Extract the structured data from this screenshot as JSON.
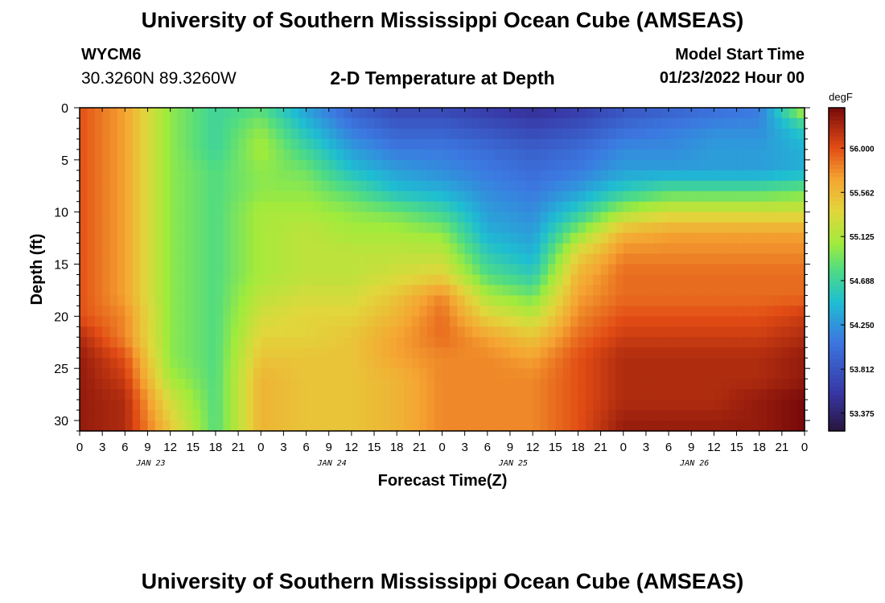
{
  "page": {
    "title": "University of Southern Mississippi Ocean Cube (AMSEAS)",
    "station": "WYCM6",
    "coordinates": "30.3260N  89.3260W",
    "subtitle": "2-D Temperature at Depth",
    "model_start_label": "Model Start Time",
    "model_start_value": "01/23/2022 Hour 00",
    "footer_title": "University of Southern Mississippi Ocean Cube (AMSEAS)"
  },
  "chart_data": {
    "type": "heatmap",
    "title": "2-D Temperature at Depth",
    "xlabel": "Forecast Time(Z)",
    "ylabel": "Depth (ft)",
    "x_hours_range": [
      0,
      96
    ],
    "x_tick_step_hours": 3,
    "x_tick_labels": [
      "0",
      "3",
      "6",
      "9",
      "12",
      "15",
      "18",
      "21",
      "0",
      "3",
      "6",
      "9",
      "12",
      "15",
      "18",
      "21",
      "0",
      "3",
      "6",
      "9",
      "12",
      "15",
      "18",
      "21",
      "0",
      "3",
      "6",
      "9",
      "12",
      "15",
      "18",
      "21",
      "0"
    ],
    "day_labels": [
      {
        "label": "JAN 23",
        "hour": 9
      },
      {
        "label": "JAN 24",
        "hour": 33
      },
      {
        "label": "JAN 25",
        "hour": 57
      },
      {
        "label": "JAN 26",
        "hour": 81
      }
    ],
    "y_range": [
      0,
      31
    ],
    "y_inverted": true,
    "y_tick_labels": [
      "0",
      "5",
      "10",
      "15",
      "20",
      "25",
      "30"
    ],
    "y_tick_values": [
      0,
      5,
      10,
      15,
      20,
      25,
      30
    ],
    "colorbar": {
      "unit": "degF",
      "min": 53.2,
      "max": 56.4,
      "tick_labels": [
        "56.000",
        "55.562",
        "55.125",
        "54.688",
        "54.250",
        "53.812",
        "53.375"
      ],
      "tick_values": [
        56.0,
        55.562,
        55.125,
        54.688,
        54.25,
        53.812,
        53.375
      ]
    },
    "grid": {
      "hours": [
        0,
        6,
        12,
        18,
        24,
        30,
        36,
        42,
        48,
        54,
        60,
        66,
        72,
        78,
        84,
        90,
        96
      ],
      "depths": [
        0,
        2,
        4,
        6,
        8,
        10,
        12,
        14,
        16,
        18,
        20,
        22,
        24,
        26,
        28,
        31
      ],
      "values": [
        [
          56.0,
          55.7,
          55.0,
          54.7,
          54.8,
          54.3,
          53.9,
          53.7,
          53.7,
          53.6,
          53.5,
          53.6,
          53.8,
          53.9,
          54.0,
          54.1,
          55.2
        ],
        [
          56.0,
          55.7,
          55.0,
          54.7,
          55.0,
          54.5,
          54.1,
          53.9,
          53.9,
          53.8,
          53.7,
          53.8,
          54.0,
          54.1,
          54.2,
          54.2,
          54.6
        ],
        [
          56.0,
          55.7,
          55.0,
          54.7,
          55.1,
          54.7,
          54.3,
          54.1,
          54.1,
          54.0,
          53.9,
          54.0,
          54.2,
          54.2,
          54.3,
          54.3,
          54.4
        ],
        [
          56.0,
          55.7,
          55.0,
          54.8,
          55.0,
          54.9,
          54.5,
          54.3,
          54.2,
          54.1,
          54.0,
          54.1,
          54.3,
          54.3,
          54.3,
          54.3,
          54.4
        ],
        [
          56.0,
          55.7,
          55.0,
          54.8,
          55.0,
          55.0,
          54.8,
          54.5,
          54.4,
          54.2,
          54.1,
          54.3,
          54.6,
          54.8,
          54.8,
          54.8,
          54.9
        ],
        [
          56.0,
          55.7,
          55.0,
          54.8,
          55.1,
          55.1,
          55.0,
          54.9,
          54.7,
          54.3,
          54.2,
          54.6,
          55.1,
          55.3,
          55.3,
          55.3,
          55.3
        ],
        [
          56.0,
          55.7,
          55.0,
          54.8,
          55.1,
          55.2,
          55.1,
          55.1,
          55.0,
          54.4,
          54.3,
          55.0,
          55.6,
          55.7,
          55.7,
          55.7,
          55.7
        ],
        [
          56.0,
          55.7,
          55.0,
          54.8,
          55.1,
          55.2,
          55.2,
          55.2,
          55.2,
          54.6,
          54.4,
          55.4,
          55.8,
          55.8,
          55.8,
          55.8,
          55.8
        ],
        [
          56.0,
          55.7,
          55.0,
          54.8,
          55.1,
          55.2,
          55.2,
          55.3,
          55.4,
          54.8,
          54.6,
          55.6,
          55.9,
          55.9,
          55.9,
          55.9,
          55.9
        ],
        [
          56.0,
          55.7,
          55.0,
          54.8,
          55.2,
          55.3,
          55.3,
          55.5,
          55.8,
          55.1,
          54.9,
          55.7,
          55.9,
          55.9,
          55.9,
          55.9,
          55.9
        ],
        [
          56.0,
          55.8,
          55.0,
          54.8,
          55.3,
          55.4,
          55.4,
          55.6,
          55.9,
          55.4,
          55.2,
          55.8,
          56.0,
          56.0,
          56.0,
          56.0,
          56.1
        ],
        [
          56.2,
          55.8,
          55.0,
          54.8,
          55.4,
          55.4,
          55.5,
          55.7,
          55.9,
          55.7,
          55.5,
          55.9,
          56.1,
          56.1,
          56.1,
          56.1,
          56.2
        ],
        [
          56.3,
          56.0,
          55.0,
          54.8,
          55.5,
          55.5,
          55.5,
          55.7,
          55.8,
          55.8,
          55.7,
          56.0,
          56.2,
          56.2,
          56.2,
          56.2,
          56.3
        ],
        [
          56.3,
          56.1,
          55.1,
          54.8,
          55.6,
          55.5,
          55.5,
          55.6,
          55.8,
          55.8,
          55.8,
          56.0,
          56.2,
          56.2,
          56.2,
          56.2,
          56.3
        ],
        [
          56.3,
          56.2,
          55.3,
          54.8,
          55.6,
          55.5,
          55.5,
          55.6,
          55.8,
          55.8,
          55.8,
          56.0,
          56.2,
          56.2,
          56.2,
          56.3,
          56.4
        ],
        [
          56.3,
          56.2,
          55.5,
          54.8,
          55.6,
          55.5,
          55.5,
          55.6,
          55.8,
          55.8,
          55.8,
          56.0,
          56.3,
          56.3,
          56.3,
          56.3,
          56.4
        ]
      ]
    }
  }
}
